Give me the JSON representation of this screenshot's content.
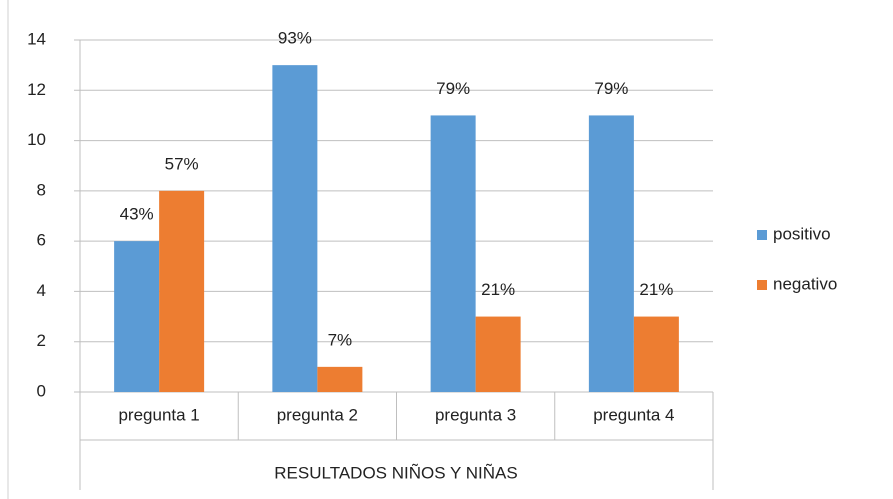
{
  "chart_data": {
    "type": "bar",
    "categories": [
      "pregunta 1",
      "pregunta 2",
      "pregunta 3",
      "pregunta 4"
    ],
    "xlabel": "RESULTADOS NIÑOS Y NIÑAS",
    "series": [
      {
        "name": "positivo",
        "color": "#5b9bd5",
        "values": [
          6,
          13,
          11,
          11
        ],
        "annotations": [
          "43%",
          "93%",
          "79%",
          "79%"
        ]
      },
      {
        "name": "negativo",
        "color": "#ed7d31",
        "values": [
          8,
          1,
          3,
          3
        ],
        "annotations": [
          "57%",
          "7%",
          "21%",
          "21%"
        ]
      }
    ],
    "ylim": [
      0,
      14
    ],
    "yticks": [
      0,
      2,
      4,
      6,
      8,
      10,
      12,
      14
    ],
    "grid": true,
    "legend": "right"
  }
}
